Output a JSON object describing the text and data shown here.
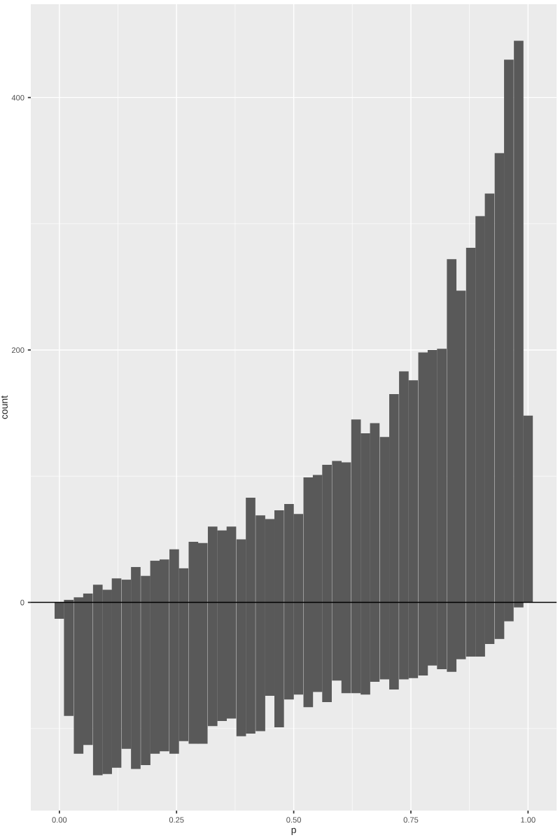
{
  "chart_data": {
    "type": "bar",
    "stacked": true,
    "xlabel": "p",
    "ylabel": "count",
    "x": [
      0,
      0.02,
      0.041,
      0.061,
      0.082,
      0.102,
      0.122,
      0.143,
      0.163,
      0.184,
      0.204,
      0.224,
      0.245,
      0.265,
      0.286,
      0.306,
      0.327,
      0.347,
      0.367,
      0.388,
      0.408,
      0.429,
      0.449,
      0.469,
      0.49,
      0.51,
      0.531,
      0.551,
      0.571,
      0.592,
      0.612,
      0.633,
      0.653,
      0.673,
      0.694,
      0.714,
      0.735,
      0.755,
      0.776,
      0.796,
      0.816,
      0.837,
      0.857,
      0.878,
      0.898,
      0.918,
      0.939,
      0.959,
      0.98,
      1
    ],
    "series": [
      {
        "color": "#595959",
        "values": [
          0,
          2,
          4,
          7,
          14,
          10,
          19,
          18,
          28,
          21,
          33,
          34,
          42,
          27,
          48,
          47,
          60,
          57,
          60,
          50,
          83,
          69,
          66,
          73,
          78,
          70,
          99,
          101,
          109,
          112,
          111,
          145,
          134,
          142,
          131,
          165,
          183,
          176,
          198,
          200,
          201,
          272,
          247,
          281,
          306,
          324,
          356,
          430,
          445,
          148
        ]
      },
      {
        "color": "#595959",
        "values": [
          -13,
          -90,
          -120,
          -113,
          -137,
          -136,
          -131,
          -116,
          -132,
          -129,
          -120,
          -118,
          -120,
          -110,
          -112,
          -112,
          -98,
          -94,
          -92,
          -106,
          -104,
          -102,
          -74,
          -99,
          -77,
          -73,
          -83,
          -71,
          -79,
          -62,
          -72,
          -72,
          -73,
          -63,
          -61,
          -69,
          -61,
          -60,
          -58,
          -50,
          -53,
          -55,
          -45,
          -43,
          -43,
          -33,
          -29,
          -15,
          -4,
          0
        ]
      }
    ],
    "xlim": [
      -0.061,
      1.061
    ],
    "ylim": [
      -165,
      474
    ],
    "xticks": [
      {
        "value": 0,
        "label": "0.00"
      },
      {
        "value": 0.125,
        "label": null
      },
      {
        "value": 0.25,
        "label": "0.25"
      },
      {
        "value": 0.375,
        "label": null
      },
      {
        "value": 0.5,
        "label": "0.50"
      },
      {
        "value": 0.625,
        "label": null
      },
      {
        "value": 0.75,
        "label": "0.75"
      },
      {
        "value": 0.875,
        "label": null
      },
      {
        "value": 1,
        "label": "1.00"
      }
    ],
    "yticks": [
      {
        "value": -100,
        "label": null
      },
      0,
      {
        "value": 100,
        "label": null
      },
      200,
      {
        "value": 300,
        "label": null
      },
      400
    ],
    "ref_lines": [
      {
        "axis": "y",
        "value": 0,
        "color": "#000000"
      }
    ],
    "grid": true
  }
}
